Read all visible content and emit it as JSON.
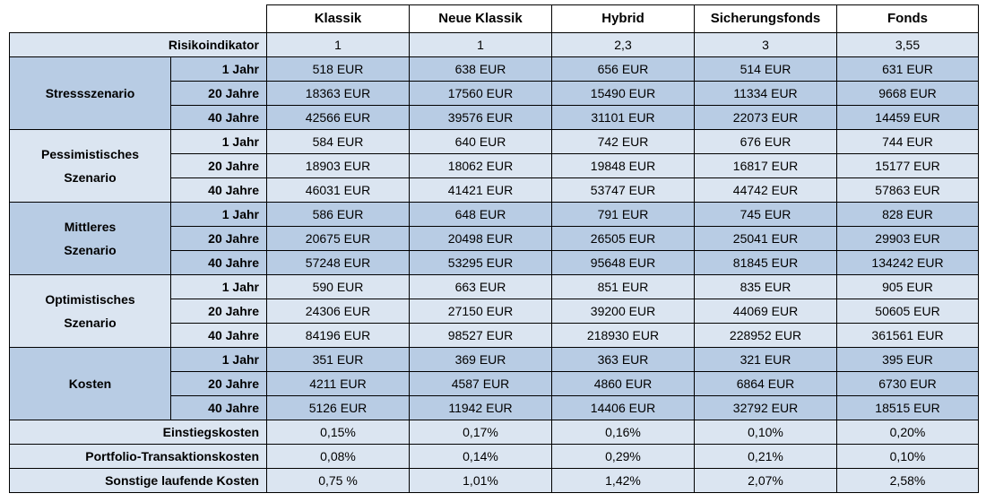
{
  "columns": [
    "Klassik",
    "Neue Klassik",
    "Hybrid",
    "Sicherungsfonds",
    "Fonds"
  ],
  "risk": {
    "label": "Risikoindikator",
    "values": [
      "1",
      "1",
      "2,3",
      "3",
      "3,55"
    ]
  },
  "groups": [
    {
      "label_lines": [
        "Stressszenario"
      ],
      "shade": "dark",
      "rows": [
        {
          "label": "1 Jahr",
          "values": [
            "518 EUR",
            "638 EUR",
            "656 EUR",
            "514 EUR",
            "631 EUR"
          ]
        },
        {
          "label": "20 Jahre",
          "values": [
            "18363 EUR",
            "17560 EUR",
            "15490 EUR",
            "11334 EUR",
            "9668 EUR"
          ]
        },
        {
          "label": "40 Jahre",
          "values": [
            "42566 EUR",
            "39576 EUR",
            "31101 EUR",
            "22073 EUR",
            "14459 EUR"
          ]
        }
      ]
    },
    {
      "label_lines": [
        "Pessimistisches",
        "Szenario"
      ],
      "shade": "light",
      "rows": [
        {
          "label": "1 Jahr",
          "values": [
            "584 EUR",
            "640 EUR",
            "742 EUR",
            "676 EUR",
            "744 EUR"
          ]
        },
        {
          "label": "20 Jahre",
          "values": [
            "18903 EUR",
            "18062 EUR",
            "19848 EUR",
            "16817 EUR",
            "15177 EUR"
          ]
        },
        {
          "label": "40 Jahre",
          "values": [
            "46031 EUR",
            "41421 EUR",
            "53747 EUR",
            "44742 EUR",
            "57863 EUR"
          ]
        }
      ]
    },
    {
      "label_lines": [
        "Mittleres",
        "Szenario"
      ],
      "shade": "dark",
      "rows": [
        {
          "label": "1 Jahr",
          "values": [
            "586 EUR",
            "648 EUR",
            "791 EUR",
            "745 EUR",
            "828 EUR"
          ]
        },
        {
          "label": "20 Jahre",
          "values": [
            "20675 EUR",
            "20498 EUR",
            "26505 EUR",
            "25041 EUR",
            "29903 EUR"
          ]
        },
        {
          "label": "40 Jahre",
          "values": [
            "57248 EUR",
            "53295 EUR",
            "95648 EUR",
            "81845 EUR",
            "134242 EUR"
          ]
        }
      ]
    },
    {
      "label_lines": [
        "Optimistisches",
        "Szenario"
      ],
      "shade": "light",
      "rows": [
        {
          "label": "1 Jahr",
          "values": [
            "590 EUR",
            "663 EUR",
            "851 EUR",
            "835 EUR",
            "905 EUR"
          ]
        },
        {
          "label": "20 Jahre",
          "values": [
            "24306 EUR",
            "27150 EUR",
            "39200 EUR",
            "44069 EUR",
            "50605 EUR"
          ]
        },
        {
          "label": "40 Jahre",
          "values": [
            "84196 EUR",
            "98527 EUR",
            "218930 EUR",
            "228952 EUR",
            "361561 EUR"
          ]
        }
      ]
    },
    {
      "label_lines": [
        "Kosten"
      ],
      "shade": "dark",
      "rows": [
        {
          "label": "1 Jahr",
          "values": [
            "351 EUR",
            "369 EUR",
            "363 EUR",
            "321 EUR",
            "395 EUR"
          ]
        },
        {
          "label": "20 Jahre",
          "values": [
            "4211 EUR",
            "4587 EUR",
            "4860 EUR",
            "6864 EUR",
            "6730 EUR"
          ]
        },
        {
          "label": "40 Jahre",
          "values": [
            "5126 EUR",
            "11942 EUR",
            "14406 EUR",
            "32792 EUR",
            "18515 EUR"
          ]
        }
      ]
    }
  ],
  "cost_rows": [
    {
      "label": "Einstiegskosten",
      "values": [
        "0,15%",
        "0,17%",
        "0,16%",
        "0,10%",
        "0,20%"
      ]
    },
    {
      "label": "Portfolio-Transaktionskosten",
      "values": [
        "0,08%",
        "0,14%",
        "0,29%",
        "0,21%",
        "0,10%"
      ]
    },
    {
      "label": "Sonstige laufende Kosten",
      "values": [
        "0,75 %",
        "1,01%",
        "1,42%",
        "2,07%",
        "2,58%"
      ]
    }
  ],
  "colors": {
    "light": "#dbe5f1",
    "dark": "#b8cce4",
    "border": "#000000"
  }
}
